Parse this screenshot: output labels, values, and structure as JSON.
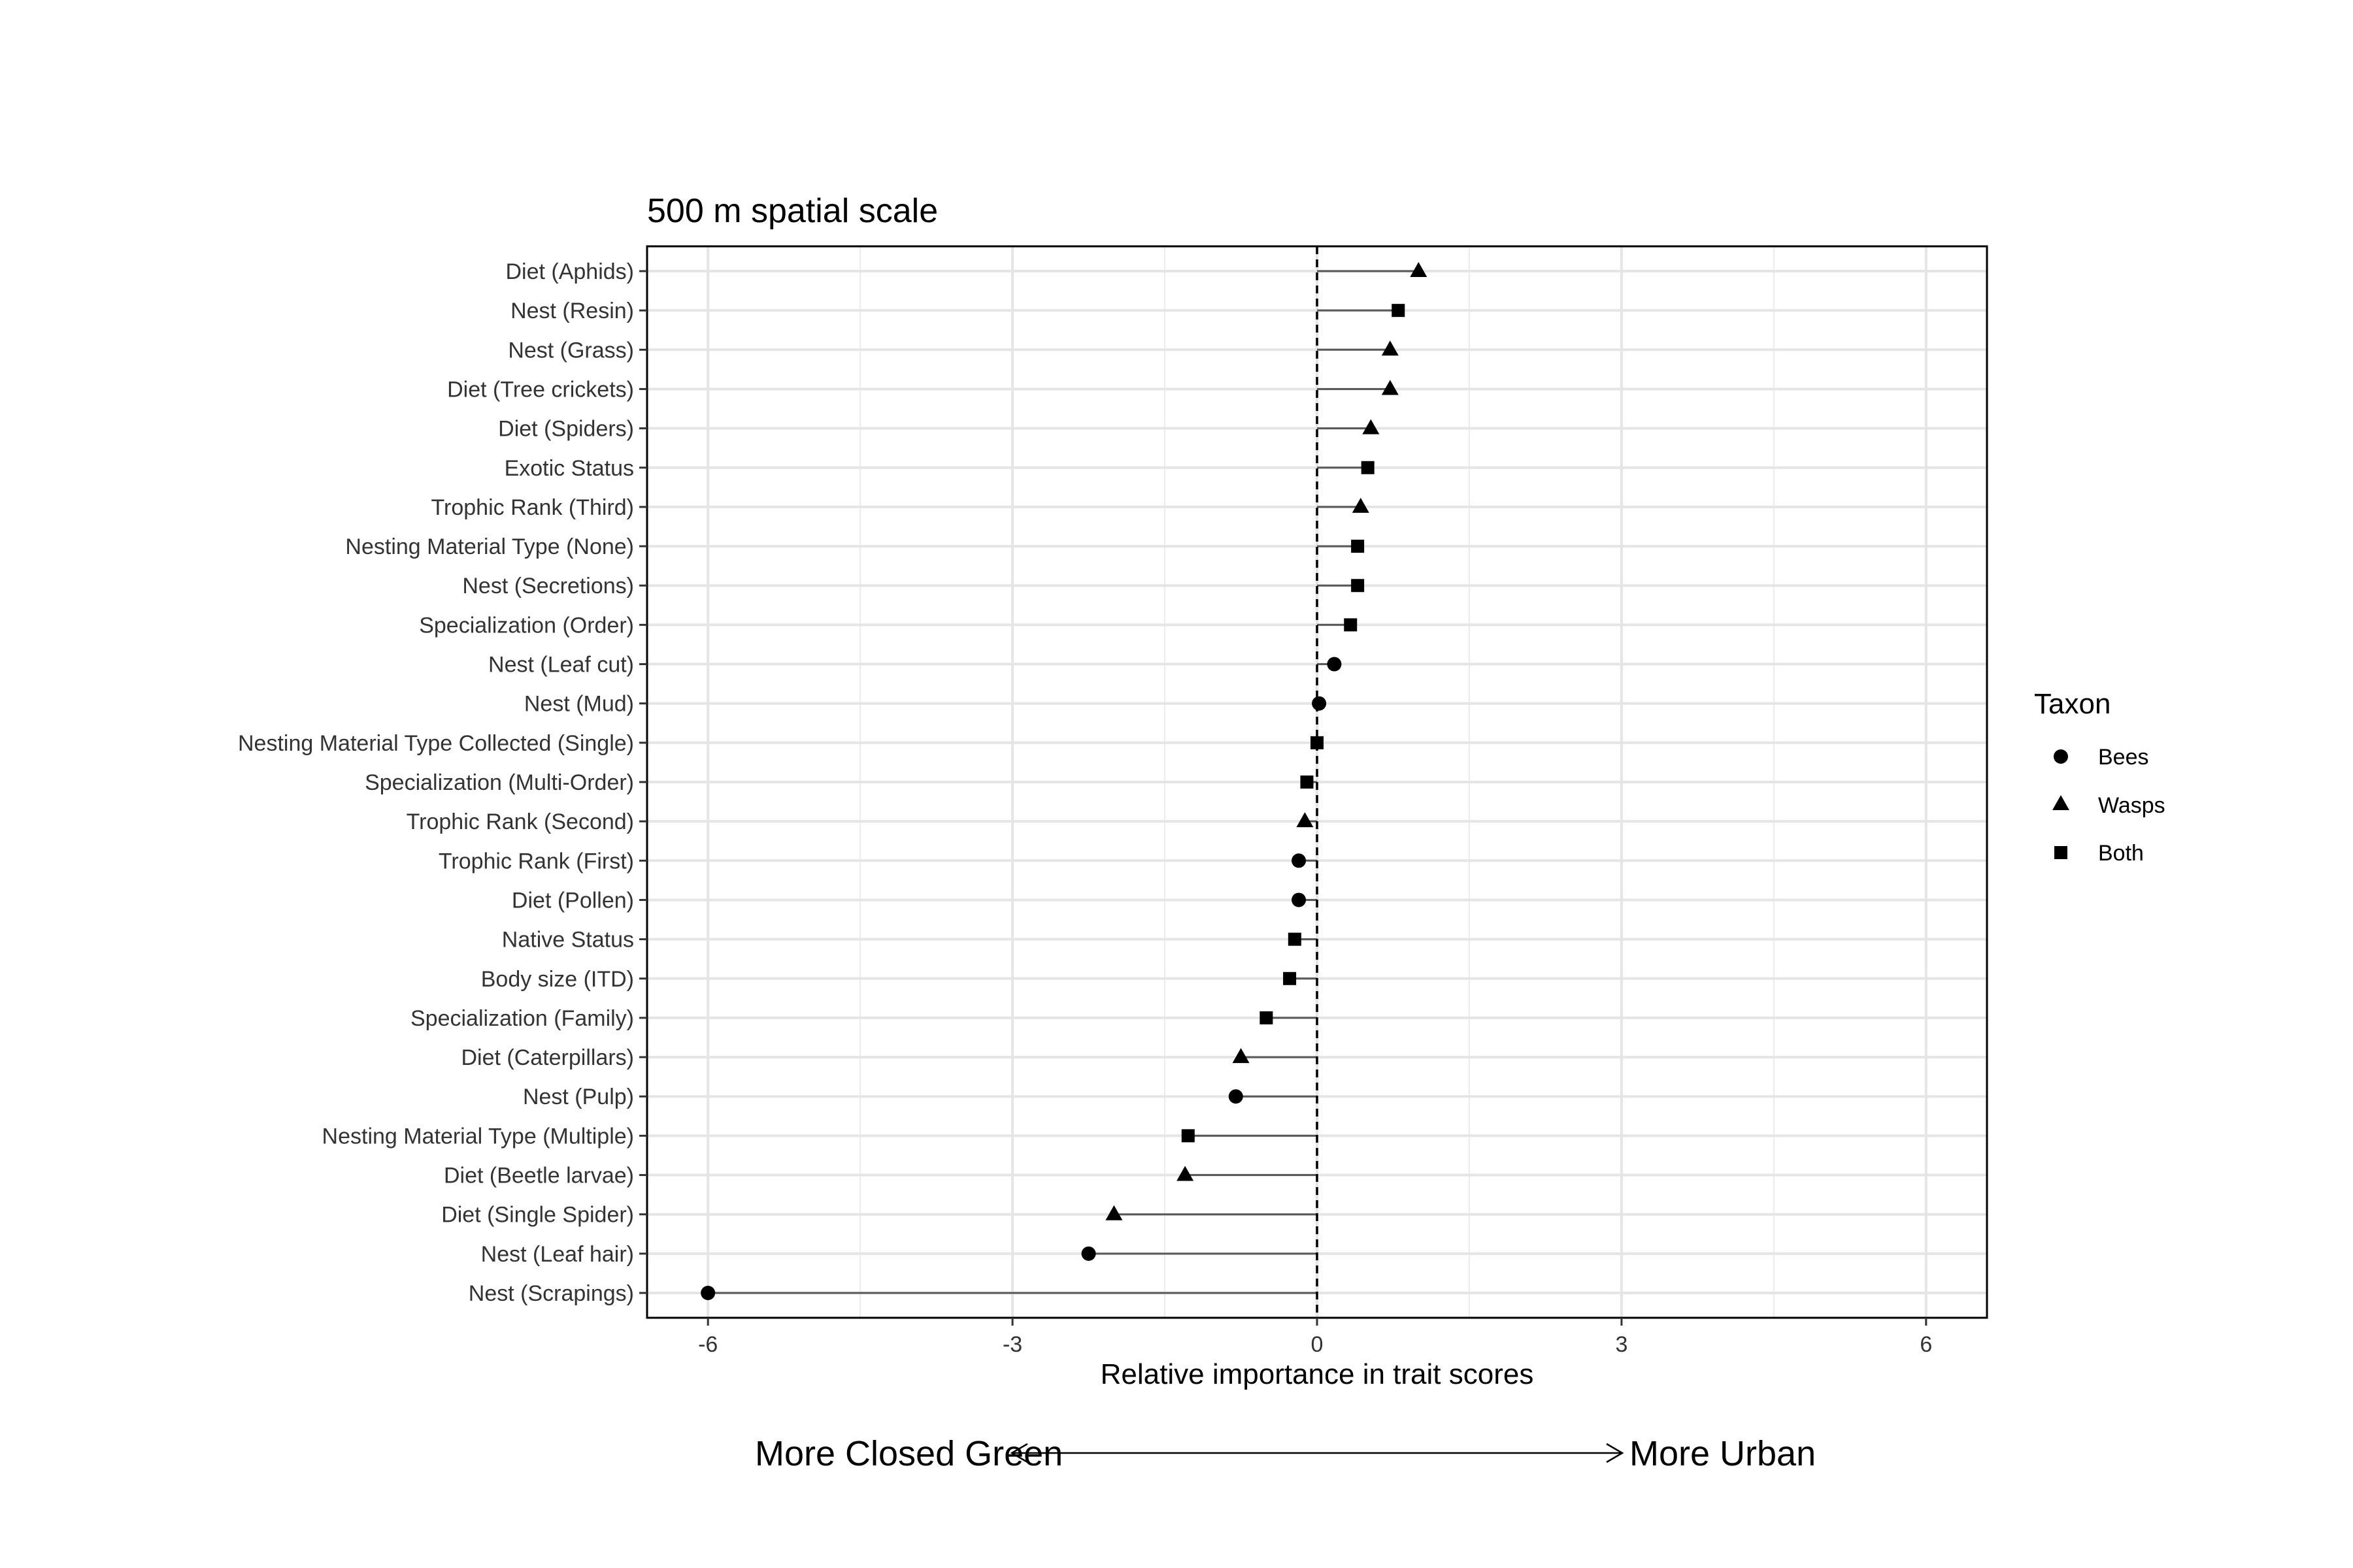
{
  "chart_data": {
    "type": "scatter",
    "title": "500 m spatial scale",
    "xlabel": "Relative importance in trait scores",
    "ylabel": "",
    "xlim": [
      -6.6,
      6.6
    ],
    "x_ticks": [
      -6,
      -3,
      0,
      3,
      6
    ],
    "x_tick_labels": [
      "-6",
      "-3",
      "0",
      "3",
      "6"
    ],
    "grid": true,
    "reference_line": 0,
    "legend": {
      "title": "Taxon",
      "placement": "right",
      "entries": [
        {
          "label": "Bees",
          "shape": "circle"
        },
        {
          "label": "Wasps",
          "shape": "triangle"
        },
        {
          "label": "Both",
          "shape": "square"
        }
      ]
    },
    "annotations": {
      "left": "More Closed Green",
      "right": "More Urban"
    },
    "points": [
      {
        "label": "Diet (Aphids)",
        "value": 1.0,
        "taxon": "Wasps"
      },
      {
        "label": "Nest (Resin)",
        "value": 0.8,
        "taxon": "Both"
      },
      {
        "label": "Nest (Grass)",
        "value": 0.72,
        "taxon": "Wasps"
      },
      {
        "label": "Diet (Tree crickets)",
        "value": 0.72,
        "taxon": "Wasps"
      },
      {
        "label": "Diet (Spiders)",
        "value": 0.53,
        "taxon": "Wasps"
      },
      {
        "label": "Exotic Status",
        "value": 0.5,
        "taxon": "Both"
      },
      {
        "label": "Trophic Rank (Third)",
        "value": 0.43,
        "taxon": "Wasps"
      },
      {
        "label": "Nesting Material Type (None)",
        "value": 0.4,
        "taxon": "Both"
      },
      {
        "label": "Nest (Secretions)",
        "value": 0.4,
        "taxon": "Both"
      },
      {
        "label": "Specialization (Order)",
        "value": 0.33,
        "taxon": "Both"
      },
      {
        "label": "Nest (Leaf cut)",
        "value": 0.17,
        "taxon": "Bees"
      },
      {
        "label": "Nest (Mud)",
        "value": 0.02,
        "taxon": "Bees"
      },
      {
        "label": "Nesting Material Type Collected (Single)",
        "value": 0.0,
        "taxon": "Both"
      },
      {
        "label": "Specialization (Multi-Order)",
        "value": -0.1,
        "taxon": "Both"
      },
      {
        "label": "Trophic Rank (Second)",
        "value": -0.12,
        "taxon": "Wasps"
      },
      {
        "label": "Trophic Rank (First)",
        "value": -0.18,
        "taxon": "Bees"
      },
      {
        "label": "Diet (Pollen)",
        "value": -0.18,
        "taxon": "Bees"
      },
      {
        "label": "Native Status",
        "value": -0.22,
        "taxon": "Both"
      },
      {
        "label": "Body size (ITD)",
        "value": -0.27,
        "taxon": "Both"
      },
      {
        "label": "Specialization (Family)",
        "value": -0.5,
        "taxon": "Both"
      },
      {
        "label": "Diet (Caterpillars)",
        "value": -0.75,
        "taxon": "Wasps"
      },
      {
        "label": "Nest (Pulp)",
        "value": -0.8,
        "taxon": "Bees"
      },
      {
        "label": "Nesting Material Type (Multiple)",
        "value": -1.27,
        "taxon": "Both"
      },
      {
        "label": "Diet (Beetle larvae)",
        "value": -1.3,
        "taxon": "Wasps"
      },
      {
        "label": "Diet (Single Spider)",
        "value": -2.0,
        "taxon": "Wasps"
      },
      {
        "label": "Nest (Leaf hair)",
        "value": -2.25,
        "taxon": "Bees"
      },
      {
        "label": "Nest (Scrapings)",
        "value": -6.0,
        "taxon": "Bees"
      }
    ]
  }
}
